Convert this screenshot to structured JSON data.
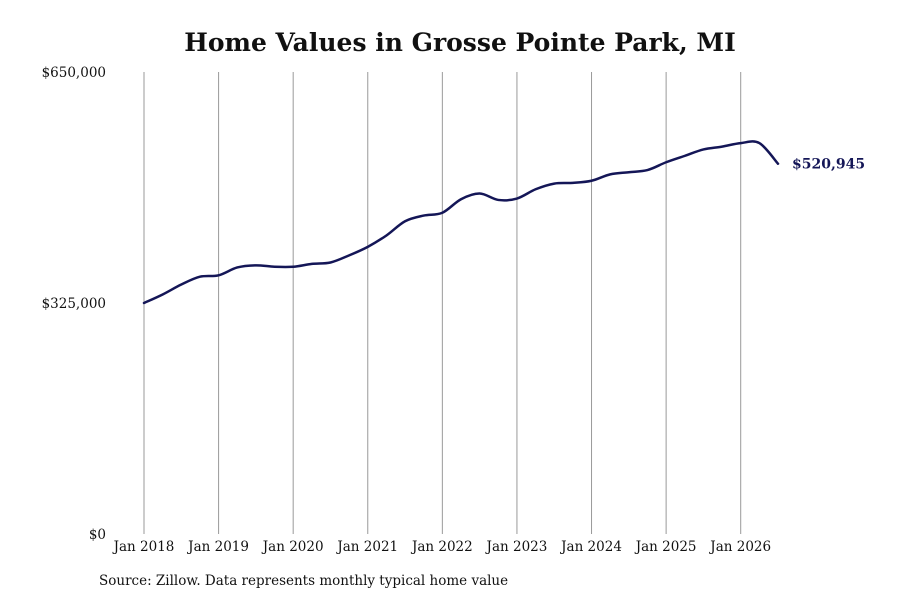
{
  "chart_data": {
    "type": "line",
    "title": "Home Values in Grosse Pointe Park, MI",
    "xlabel": "",
    "ylabel": "",
    "x_ticks": [
      "Jan 2018",
      "Jan 2019",
      "Jan 2020",
      "Jan 2021",
      "Jan 2022",
      "Jan 2023",
      "Jan 2024",
      "Jan 2025",
      "Jan 2026"
    ],
    "y_ticks": [
      "$0",
      "$325,000",
      "$650,000"
    ],
    "ylim": [
      0,
      650000
    ],
    "xlim": [
      "2018-01",
      "2026-07"
    ],
    "grid": "vertical",
    "line_color": "#141657",
    "end_label": "$520,945",
    "series": [
      {
        "x": [
          "2018-01",
          "2018-04",
          "2018-07",
          "2018-10",
          "2019-01",
          "2019-04",
          "2019-07",
          "2019-10",
          "2020-01",
          "2020-04",
          "2020-07",
          "2020-10",
          "2021-01",
          "2021-04",
          "2021-07",
          "2021-10",
          "2022-01",
          "2022-04",
          "2022-07",
          "2022-10",
          "2023-01",
          "2023-04",
          "2023-07",
          "2023-10",
          "2024-01",
          "2024-04",
          "2024-07",
          "2024-10",
          "2025-01",
          "2025-04",
          "2025-07",
          "2025-10",
          "2026-01",
          "2026-04",
          "2026-07"
        ],
        "values": [
          325000,
          337000,
          351000,
          362000,
          364000,
          375000,
          378000,
          376000,
          376000,
          380000,
          382000,
          392000,
          404000,
          420000,
          440000,
          448000,
          452000,
          471000,
          479000,
          470000,
          472000,
          485000,
          493000,
          494000,
          497000,
          506000,
          509000,
          512000,
          523000,
          532000,
          541000,
          545000,
          550000,
          550000,
          520945
        ]
      }
    ]
  },
  "source": "Source: Zillow. Data represents monthly typical home value"
}
